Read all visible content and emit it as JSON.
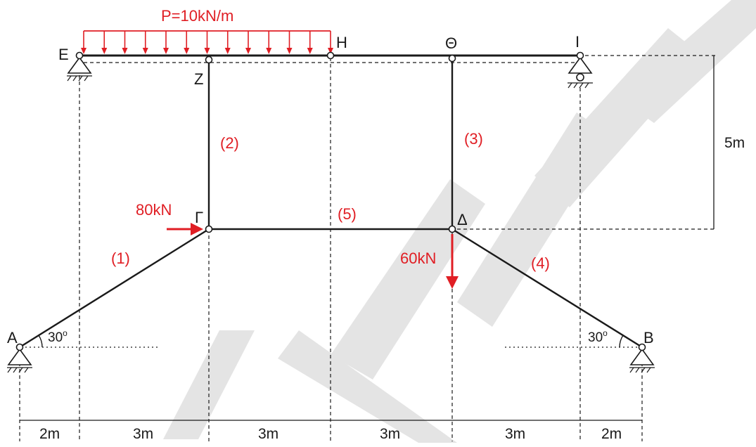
{
  "load_label": "P=10kN/m",
  "nodes": {
    "E": "Ε",
    "H": "Η",
    "Theta": "Θ",
    "I": "Ι",
    "Z": "Ζ",
    "Gamma": "Γ",
    "Delta": "Δ",
    "A": "Α",
    "B": "Β"
  },
  "members": {
    "m1": "(1)",
    "m2": "(2)",
    "m3": "(3)",
    "m4": "(4)",
    "m5": "(5)"
  },
  "forces": {
    "horizontal": "80kN",
    "vertical": "60kN"
  },
  "angles": {
    "left_value": "30",
    "right_value": "30",
    "degree": "o"
  },
  "height_dim": "5m",
  "bottom_dims": [
    "2m",
    "3m",
    "3m",
    "3m",
    "3m",
    "2m"
  ],
  "colors": {
    "load": "#e01e24",
    "structure": "#1a1a1a"
  }
}
